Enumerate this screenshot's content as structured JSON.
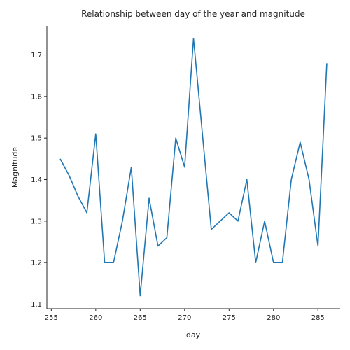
{
  "chart_data": {
    "type": "line",
    "title": "Relationship between day of the year and magnitude",
    "xlabel": "day",
    "ylabel": "Magnitude",
    "xlim": [
      254.5,
      287.5
    ],
    "ylim": [
      1.089,
      1.77
    ],
    "xticks": [
      255,
      260,
      265,
      270,
      275,
      280,
      285
    ],
    "yticks": [
      1.1,
      1.2,
      1.3,
      1.4,
      1.5,
      1.6,
      1.7
    ],
    "xtick_labels": [
      "255",
      "260",
      "265",
      "270",
      "275",
      "280",
      "285"
    ],
    "ytick_labels": [
      "1.1",
      "1.2",
      "1.3",
      "1.4",
      "1.5",
      "1.6",
      "1.7"
    ],
    "grid": false,
    "legend": "none",
    "series": [
      {
        "color": "#1f77b4",
        "x": [
          256,
          257,
          258,
          259,
          260,
          261,
          262,
          263,
          264,
          265,
          266,
          267,
          268,
          269,
          270,
          271,
          272,
          273,
          274,
          275,
          276,
          277,
          278,
          279,
          280,
          281,
          282,
          283,
          284,
          285,
          286
        ],
        "y": [
          1.45,
          1.41,
          1.36,
          1.32,
          1.51,
          1.2,
          1.2,
          1.3,
          1.43,
          1.12,
          1.355,
          1.24,
          1.26,
          1.5,
          1.43,
          1.74,
          1.51,
          1.28,
          1.3,
          1.32,
          1.3,
          1.4,
          1.2,
          1.3,
          1.2,
          1.2,
          1.4,
          1.49,
          1.4,
          1.24,
          1.68
        ]
      }
    ]
  }
}
